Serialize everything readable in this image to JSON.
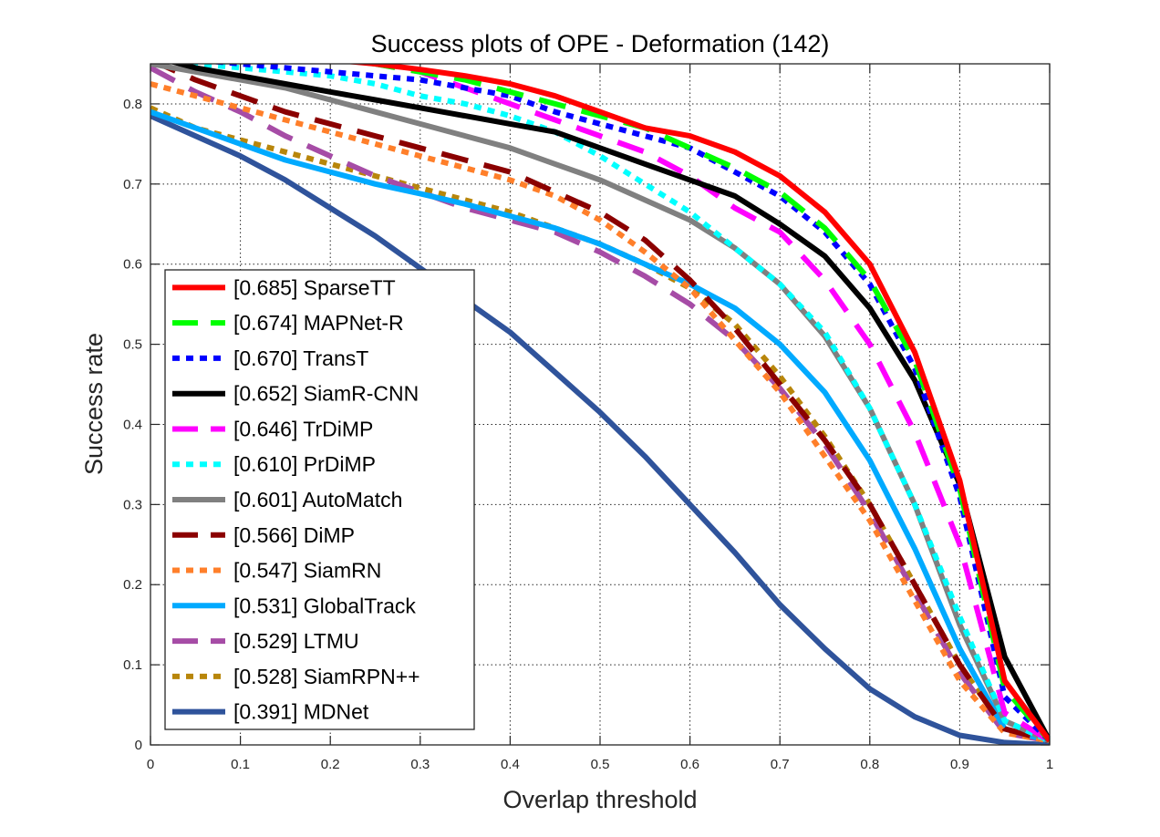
{
  "chart_data": {
    "type": "line",
    "title": "Success plots of OPE - Deformation (142)",
    "xlabel": "Overlap threshold",
    "ylabel": "Success rate",
    "xlim": [
      0,
      1
    ],
    "ylim": [
      0,
      0.85
    ],
    "xticks": [
      "0",
      "0.1",
      "0.2",
      "0.3",
      "0.4",
      "0.5",
      "0.6",
      "0.7",
      "0.8",
      "0.9",
      "1"
    ],
    "yticks": [
      "0",
      "0.1",
      "0.2",
      "0.3",
      "0.4",
      "0.5",
      "0.6",
      "0.7",
      "0.8"
    ],
    "grid": true,
    "legend_position": "bottom-left",
    "x": [
      0,
      0.05,
      0.1,
      0.15,
      0.2,
      0.25,
      0.3,
      0.35,
      0.4,
      0.45,
      0.5,
      0.55,
      0.6,
      0.65,
      0.7,
      0.75,
      0.8,
      0.85,
      0.9,
      0.95,
      1
    ],
    "series": [
      {
        "label": "[0.685] SparseTT",
        "color": "#ff0000",
        "style": "solid",
        "values": [
          0.88,
          0.87,
          0.865,
          0.86,
          0.855,
          0.85,
          0.843,
          0.835,
          0.825,
          0.81,
          0.79,
          0.77,
          0.76,
          0.74,
          0.71,
          0.665,
          0.6,
          0.49,
          0.33,
          0.08,
          0.005
        ]
      },
      {
        "label": "[0.674] MAPNet-R",
        "color": "#00ff00",
        "style": "dash",
        "values": [
          0.88,
          0.875,
          0.868,
          0.863,
          0.857,
          0.85,
          0.84,
          0.83,
          0.815,
          0.8,
          0.785,
          0.77,
          0.745,
          0.72,
          0.69,
          0.645,
          0.58,
          0.48,
          0.32,
          0.07,
          0.005
        ]
      },
      {
        "label": "[0.670] TransT",
        "color": "#0000ff",
        "style": "dot",
        "values": [
          0.875,
          0.855,
          0.85,
          0.845,
          0.84,
          0.835,
          0.83,
          0.82,
          0.81,
          0.79,
          0.775,
          0.76,
          0.745,
          0.715,
          0.685,
          0.64,
          0.575,
          0.47,
          0.31,
          0.06,
          0.005
        ]
      },
      {
        "label": "[0.652] SiamR-CNN",
        "color": "#000000",
        "style": "solid",
        "values": [
          0.86,
          0.845,
          0.835,
          0.825,
          0.815,
          0.805,
          0.795,
          0.785,
          0.775,
          0.765,
          0.745,
          0.725,
          0.705,
          0.685,
          0.65,
          0.61,
          0.545,
          0.455,
          0.325,
          0.11,
          0.005
        ]
      },
      {
        "label": "[0.646] TrDiMP",
        "color": "#ff00ff",
        "style": "dash",
        "values": [
          0.88,
          0.875,
          0.87,
          0.865,
          0.86,
          0.85,
          0.84,
          0.82,
          0.8,
          0.78,
          0.76,
          0.74,
          0.71,
          0.67,
          0.64,
          0.58,
          0.5,
          0.39,
          0.25,
          0.04,
          0.005
        ]
      },
      {
        "label": "[0.610] PrDiMP",
        "color": "#00ffff",
        "style": "dot",
        "values": [
          0.86,
          0.85,
          0.845,
          0.84,
          0.835,
          0.825,
          0.81,
          0.8,
          0.785,
          0.765,
          0.735,
          0.7,
          0.665,
          0.62,
          0.575,
          0.515,
          0.42,
          0.3,
          0.16,
          0.03,
          0.005
        ]
      },
      {
        "label": "[0.601] AutoMatch",
        "color": "#808080",
        "style": "solid",
        "values": [
          0.85,
          0.84,
          0.83,
          0.82,
          0.805,
          0.79,
          0.775,
          0.76,
          0.745,
          0.725,
          0.705,
          0.68,
          0.655,
          0.62,
          0.575,
          0.51,
          0.42,
          0.3,
          0.15,
          0.03,
          0.005
        ]
      },
      {
        "label": "[0.566] DiMP",
        "color": "#8b0000",
        "style": "dash",
        "values": [
          0.855,
          0.83,
          0.81,
          0.79,
          0.775,
          0.76,
          0.745,
          0.73,
          0.715,
          0.69,
          0.665,
          0.63,
          0.58,
          0.52,
          0.45,
          0.38,
          0.3,
          0.2,
          0.1,
          0.02,
          0.005
        ]
      },
      {
        "label": "[0.547] SiamRN",
        "color": "#ff7f2a",
        "style": "dot",
        "values": [
          0.825,
          0.81,
          0.795,
          0.78,
          0.765,
          0.75,
          0.735,
          0.72,
          0.705,
          0.685,
          0.655,
          0.615,
          0.57,
          0.505,
          0.44,
          0.36,
          0.28,
          0.18,
          0.08,
          0.015,
          0.005
        ]
      },
      {
        "label": "[0.531] GlobalTrack",
        "color": "#00aaff",
        "style": "solid",
        "values": [
          0.79,
          0.77,
          0.75,
          0.73,
          0.715,
          0.7,
          0.688,
          0.675,
          0.66,
          0.645,
          0.625,
          0.6,
          0.575,
          0.545,
          0.5,
          0.44,
          0.355,
          0.245,
          0.12,
          0.02,
          0.005
        ]
      },
      {
        "label": "[0.529] LTMU",
        "color": "#a64ca6",
        "style": "dash",
        "values": [
          0.845,
          0.815,
          0.79,
          0.76,
          0.735,
          0.71,
          0.69,
          0.67,
          0.655,
          0.64,
          0.615,
          0.585,
          0.55,
          0.505,
          0.445,
          0.375,
          0.29,
          0.19,
          0.09,
          0.015,
          0.005
        ]
      },
      {
        "label": "[0.528] SiamRPN++",
        "color": "#b8860b",
        "style": "dot",
        "values": [
          0.795,
          0.77,
          0.755,
          0.74,
          0.725,
          0.71,
          0.695,
          0.68,
          0.665,
          0.645,
          0.625,
          0.6,
          0.57,
          0.525,
          0.46,
          0.385,
          0.3,
          0.2,
          0.1,
          0.02,
          0.005
        ]
      },
      {
        "label": "[0.391] MDNet",
        "color": "#2f539b",
        "style": "solid",
        "values": [
          0.785,
          0.76,
          0.735,
          0.705,
          0.67,
          0.635,
          0.595,
          0.555,
          0.515,
          0.465,
          0.415,
          0.36,
          0.3,
          0.24,
          0.175,
          0.12,
          0.07,
          0.035,
          0.012,
          0.003,
          0
        ]
      }
    ]
  }
}
